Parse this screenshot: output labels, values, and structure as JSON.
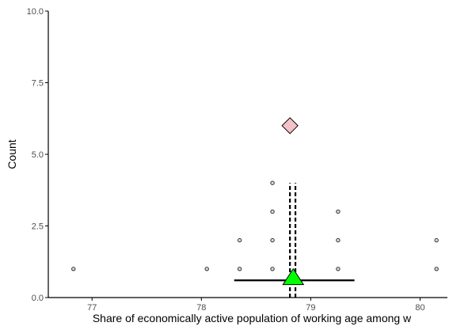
{
  "chart_data": {
    "type": "scatter",
    "title": "",
    "xlabel": "Share of  economically active population of working age among w",
    "ylabel": "Count",
    "xlim": [
      76.6,
      80.25
    ],
    "ylim": [
      0,
      10
    ],
    "x_ticks": [
      77,
      78,
      79,
      80
    ],
    "x_tick_labels": [
      "77",
      "78",
      "79",
      "80"
    ],
    "y_ticks": [
      0,
      2.5,
      5,
      7.5,
      10
    ],
    "y_tick_labels": [
      "0.0",
      "2.5",
      "5.0",
      "7.5",
      "10.0"
    ],
    "grid": false,
    "legend": "none",
    "series": [
      {
        "marker": "small-open-circle",
        "points": [
          {
            "x": 76.83,
            "y": 1
          },
          {
            "x": 78.05,
            "y": 1
          },
          {
            "x": 78.35,
            "y": 1
          },
          {
            "x": 78.35,
            "y": 2
          },
          {
            "x": 78.65,
            "y": 1
          },
          {
            "x": 78.65,
            "y": 2
          },
          {
            "x": 78.65,
            "y": 3
          },
          {
            "x": 78.65,
            "y": 4
          },
          {
            "x": 79.25,
            "y": 1
          },
          {
            "x": 79.25,
            "y": 2
          },
          {
            "x": 79.25,
            "y": 3
          },
          {
            "x": 80.15,
            "y": 1
          },
          {
            "x": 80.15,
            "y": 2
          }
        ]
      }
    ],
    "diamond": {
      "x": 78.81,
      "y": 6,
      "color": "#f4c2c8"
    },
    "triangle": {
      "x": 78.84,
      "y": 0.7,
      "color": "#00ff00"
    },
    "horizontal_interval": {
      "x_start": 78.3,
      "x_end": 79.4,
      "y": 0.6
    },
    "dashed_lines": [
      {
        "x": 78.81,
        "y_start": 0,
        "y_end": 4
      },
      {
        "x": 78.86,
        "y_start": 0,
        "y_end": 4
      }
    ],
    "colors": {
      "point_stroke": "#333333",
      "point_fill": "#d9d9d9",
      "axis": "#000000",
      "line": "#000000"
    }
  }
}
